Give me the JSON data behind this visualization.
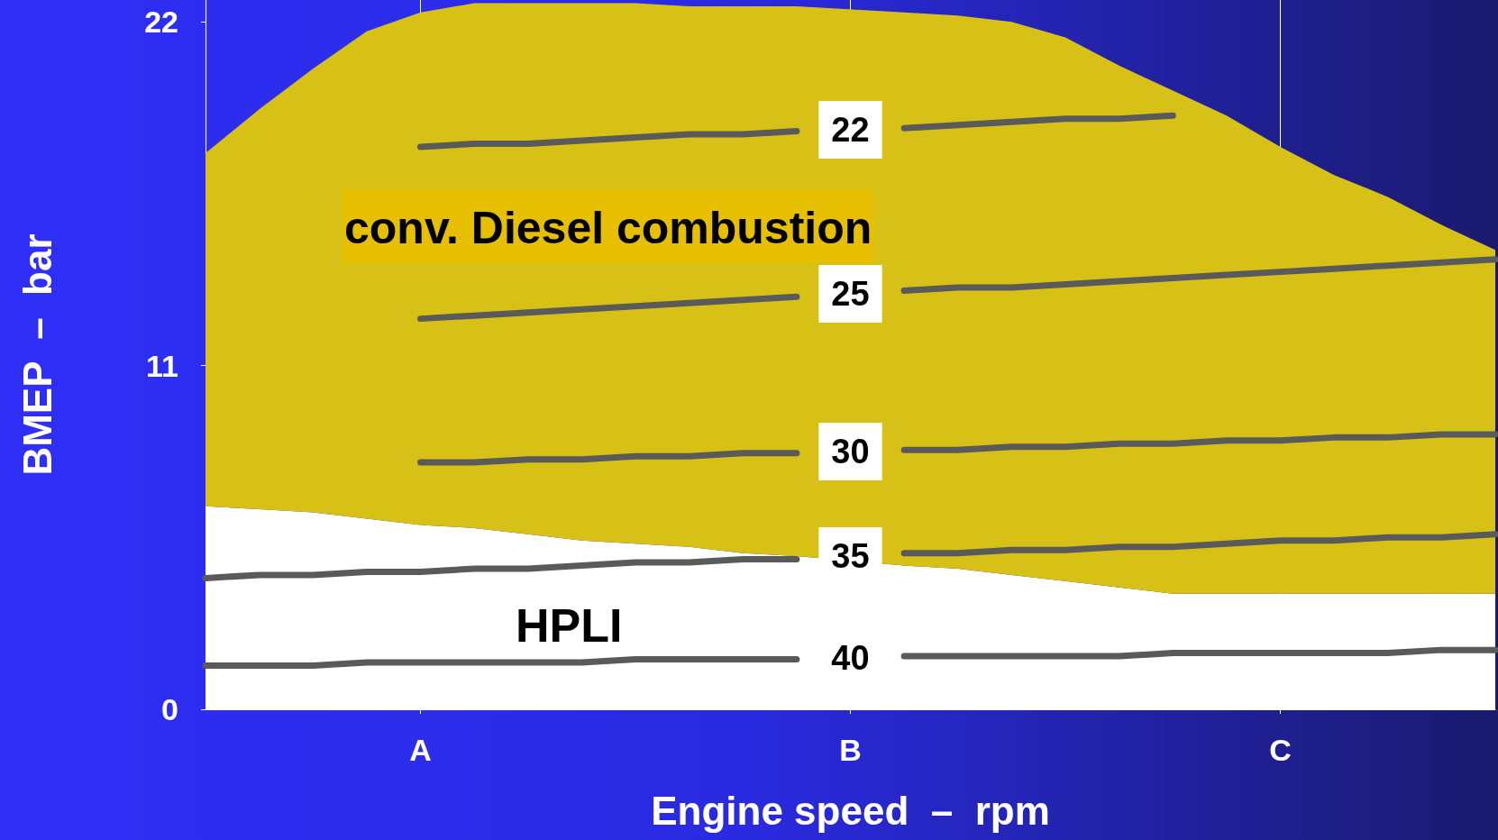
{
  "chart_data": {
    "type": "line",
    "xlabel": "Engine speed  –  rpm",
    "ylabel": "BMEP  –  bar",
    "categories": [
      null,
      null,
      null,
      null,
      "A",
      null,
      null,
      null,
      null,
      null,
      null,
      null,
      "B",
      null,
      null,
      null,
      null,
      null,
      null,
      null,
      "C",
      null,
      null,
      null,
      null
    ],
    "ylim": [
      0,
      22.7
    ],
    "yticks": [
      0,
      11,
      22
    ],
    "grid": "x",
    "legend": false,
    "marker": "none",
    "stacked": true,
    "series": [
      {
        "type": "area",
        "color": "#ffffff",
        "values": [
          6.5,
          6.4,
          6.3,
          6.1,
          5.9,
          5.8,
          5.6,
          5.4,
          5.3,
          5.2,
          5.0,
          4.9,
          null,
          4.6,
          4.5,
          4.3,
          4.1,
          3.9,
          3.7,
          3.7,
          3.7,
          3.7,
          3.7,
          3.7,
          3.7
        ]
      },
      {
        "type": "area",
        "color": "#d8c116",
        "values": [
          11.3,
          12.8,
          14.2,
          15.6,
          16.4,
          16.8,
          17.0,
          17.2,
          17.3,
          17.3,
          17.5,
          17.6,
          null,
          17.7,
          17.7,
          17.7,
          17.4,
          16.7,
          16.1,
          15.3,
          14.3,
          13.4,
          12.7,
          11.8,
          11.0
        ]
      },
      {
        "name": "22",
        "color": "#5a5a5a",
        "values": [
          null,
          null,
          null,
          null,
          18.0,
          18.1,
          18.1,
          18.2,
          18.3,
          18.4,
          18.4,
          18.5,
          null,
          18.6,
          18.7,
          18.8,
          18.9,
          18.9,
          19.0,
          null,
          null,
          null,
          null,
          null,
          null
        ]
      },
      {
        "name": "25",
        "color": "#5a5a5a",
        "values": [
          null,
          null,
          null,
          null,
          12.5,
          12.6,
          12.7,
          12.8,
          12.9,
          13.0,
          13.1,
          13.2,
          null,
          13.4,
          13.5,
          13.5,
          13.6,
          13.7,
          13.8,
          13.9,
          14.0,
          14.1,
          14.2,
          14.3,
          14.4
        ]
      },
      {
        "name": "30",
        "color": "#5a5a5a",
        "values": [
          null,
          null,
          null,
          null,
          7.9,
          7.9,
          8.0,
          8.0,
          8.1,
          8.1,
          8.2,
          8.2,
          null,
          8.3,
          8.3,
          8.4,
          8.4,
          8.5,
          8.5,
          8.6,
          8.6,
          8.7,
          8.7,
          8.8,
          8.8
        ]
      },
      {
        "name": "35",
        "color": "#5a5a5a",
        "values": [
          4.2,
          4.3,
          4.3,
          4.4,
          4.4,
          4.5,
          4.5,
          4.6,
          4.7,
          4.7,
          4.8,
          4.8,
          null,
          5.0,
          5.0,
          5.1,
          5.1,
          5.2,
          5.2,
          5.3,
          5.4,
          5.4,
          5.5,
          5.5,
          5.6
        ]
      },
      {
        "name": "40",
        "color": "#5a5a5a",
        "values": [
          1.4,
          1.4,
          1.4,
          1.5,
          1.5,
          1.5,
          1.5,
          1.5,
          1.6,
          1.6,
          1.6,
          1.6,
          null,
          1.7,
          1.7,
          1.7,
          1.7,
          1.7,
          1.8,
          1.8,
          1.8,
          1.8,
          1.8,
          1.9,
          1.9
        ]
      }
    ],
    "annotations": [
      "conv. Diesel combustion",
      "HPLI"
    ]
  }
}
